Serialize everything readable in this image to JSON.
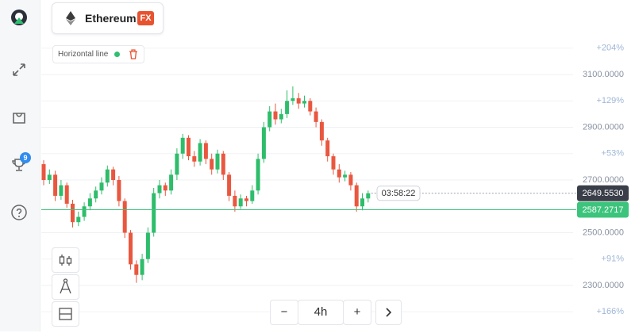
{
  "header": {
    "asset": "Ethereum",
    "badge": "FX"
  },
  "sidebar": {
    "badge": "9"
  },
  "drawing_tool": {
    "label": "Horizontal line"
  },
  "controls": {
    "minus": "−",
    "interval": "4h",
    "plus": "+"
  },
  "chart_data": {
    "type": "candlestick",
    "open": [
      2760,
      2700,
      2720,
      2640,
      2680,
      2610,
      2540,
      2560,
      2600,
      2630,
      2660,
      2690,
      2740,
      2700,
      2620,
      2500,
      2380,
      2340,
      2400,
      2500,
      2650,
      2680,
      2660,
      2720,
      2800,
      2860,
      2790,
      2770,
      2840,
      2780,
      2740,
      2800,
      2720,
      2640,
      2600,
      2630,
      2620,
      2660,
      2780,
      2900,
      2960,
      2930,
      2950,
      3000,
      3010,
      2990,
      3000,
      2960,
      2920,
      2850,
      2790,
      2740,
      2710,
      2720,
      2680,
      2600,
      2630
    ],
    "high": [
      2775,
      2740,
      2735,
      2700,
      2690,
      2625,
      2580,
      2615,
      2650,
      2675,
      2710,
      2755,
      2750,
      2715,
      2630,
      2510,
      2395,
      2420,
      2520,
      2670,
      2700,
      2690,
      2740,
      2820,
      2875,
      2870,
      2810,
      2855,
      2850,
      2800,
      2815,
      2810,
      2730,
      2660,
      2645,
      2640,
      2680,
      2800,
      2920,
      2980,
      2990,
      2970,
      3040,
      3055,
      3030,
      3020,
      3010,
      2975,
      2930,
      2860,
      2800,
      2760,
      2735,
      2730,
      2690,
      2650,
      2660
    ],
    "low": [
      2680,
      2685,
      2620,
      2625,
      2595,
      2520,
      2525,
      2545,
      2585,
      2615,
      2645,
      2675,
      2680,
      2600,
      2480,
      2360,
      2310,
      2320,
      2385,
      2485,
      2630,
      2640,
      2645,
      2700,
      2780,
      2775,
      2750,
      2755,
      2760,
      2720,
      2725,
      2700,
      2620,
      2580,
      2590,
      2600,
      2610,
      2645,
      2765,
      2885,
      2910,
      2915,
      2935,
      2985,
      2970,
      2975,
      2945,
      2900,
      2830,
      2770,
      2720,
      2690,
      2695,
      2660,
      2580,
      2585,
      2615
    ],
    "close": [
      2700,
      2720,
      2640,
      2680,
      2610,
      2540,
      2560,
      2600,
      2630,
      2660,
      2690,
      2740,
      2700,
      2620,
      2500,
      2380,
      2340,
      2400,
      2500,
      2650,
      2680,
      2660,
      2720,
      2800,
      2860,
      2790,
      2770,
      2840,
      2780,
      2740,
      2800,
      2720,
      2640,
      2600,
      2630,
      2620,
      2660,
      2780,
      2900,
      2960,
      2930,
      2950,
      3000,
      3010,
      2990,
      3000,
      2960,
      2920,
      2850,
      2790,
      2740,
      2710,
      2720,
      2680,
      2600,
      2630,
      2649.553
    ],
    "colors": {
      "up": "#2ebd6b",
      "down": "#e9573f"
    },
    "ylim": [
      2125.6,
      3382.7
    ],
    "yticks": [
      {
        "value": 3100,
        "label": "3100.0000"
      },
      {
        "value": 2900,
        "label": "2900.0000"
      },
      {
        "value": 2700,
        "label": "2700.0000"
      },
      {
        "value": 2500,
        "label": "2500.0000"
      },
      {
        "value": 2300,
        "label": "2300.0000"
      }
    ],
    "y2ticks": [
      {
        "value": 3200,
        "label": "+204%"
      },
      {
        "value": 3000,
        "label": "+129%"
      },
      {
        "value": 2800,
        "label": "+53%"
      },
      {
        "value": 2400,
        "label": "+91%"
      },
      {
        "value": 2200,
        "label": "+166%"
      }
    ],
    "grid": true,
    "current_price": {
      "value": 2649.553,
      "label": "2649.5530"
    },
    "horizontal_line": {
      "value": 2587.2717,
      "color": "#3cc47c"
    },
    "timer": "03:58:22"
  }
}
